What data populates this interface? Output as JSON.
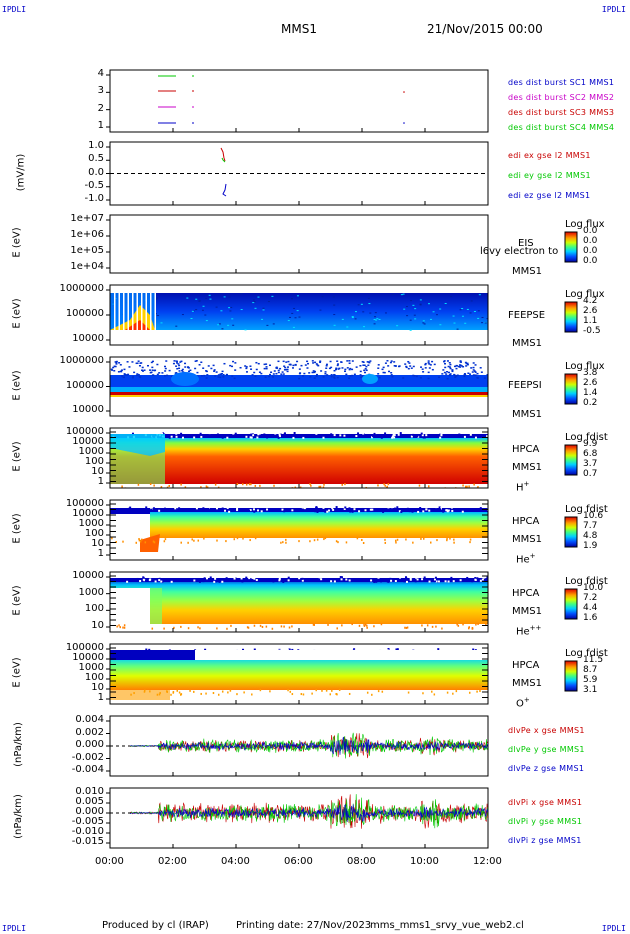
{
  "header": {
    "left_tag": "IPDLI",
    "right_tag": "IPDLI",
    "mission": "MMS1",
    "date": "21/Nov/2015 00:00"
  },
  "footer": {
    "left_tag": "IPDLI",
    "right_tag": "IPDLI",
    "produced_by": "Produced by cl (IRAP)",
    "printing_date": "Printing date: 27/Nov/2023",
    "file": "mms_mms1_srvy_vue_web2.cl"
  },
  "colors": {
    "burst1": "#00c800",
    "burst2": "#c80000",
    "burst3": "#c800c8",
    "burst4": "#0000c8",
    "legend_blue": "#0000c8",
    "legend_magenta": "#c800c8",
    "legend_red": "#c80000",
    "legend_green": "#00c800"
  },
  "chart_data": [
    {
      "type": "line",
      "panel": "burst",
      "yticks": [
        "4",
        "3",
        "2",
        "1"
      ],
      "ylim": [
        0.5,
        4.5
      ],
      "series": [
        {
          "name": "des dist burst SC1 MMS1",
          "color": "#0000c8"
        },
        {
          "name": "des dist burst SC2 MMS2",
          "color": "#c800c8"
        },
        {
          "name": "des dist burst SC3 MMS3",
          "color": "#c80000"
        },
        {
          "name": "des dist burst SC4 MMS4",
          "color": "#00c800"
        }
      ]
    },
    {
      "type": "line",
      "panel": "edi",
      "ylabel": "(mV/m)",
      "yticks": [
        "1.0",
        "0.5",
        "0.0",
        "-0.5",
        "-1.0"
      ],
      "ylim": [
        -1.4,
        1.2
      ],
      "series": [
        {
          "name": "edi ex gse l2 MMS1",
          "color": "#c80000"
        },
        {
          "name": "edi ey gse l2 MMS1",
          "color": "#00c800"
        },
        {
          "name": "edi ez gse l2 MMS1",
          "color": "#0000c8"
        }
      ]
    },
    {
      "type": "heatmap",
      "panel": "EIS",
      "ylabel": "E (eV)",
      "yticks": [
        "1e+07",
        "1e+06",
        "1e+05",
        "1e+04"
      ],
      "label": [
        "EIS",
        "MMS1"
      ],
      "overlay_text": "l6vy electron to",
      "colorbar": {
        "title": "Log flux",
        "ticks": [
          "0.0",
          "0.0",
          "0.0",
          "0.0"
        ]
      }
    },
    {
      "type": "heatmap",
      "panel": "FEEPSE",
      "ylabel": "E (eV)",
      "yticks": [
        "1000000",
        "100000",
        "10000"
      ],
      "label": [
        "FEEPSE",
        "MMS1"
      ],
      "colorbar": {
        "title": "Log flux",
        "ticks": [
          "4.2",
          "2.6",
          "1.1",
          "-0.5"
        ]
      }
    },
    {
      "type": "heatmap",
      "panel": "FEEPSI",
      "ylabel": "E (eV)",
      "yticks": [
        "1000000",
        "100000",
        "10000"
      ],
      "label": [
        "FEEPSI",
        "MMS1"
      ],
      "colorbar": {
        "title": "Log flux",
        "ticks": [
          "3.8",
          "2.6",
          "1.4",
          "0.2"
        ]
      }
    },
    {
      "type": "heatmap",
      "panel": "HPCA_H",
      "ylabel": "E (eV)",
      "yticks": [
        "100000",
        "10000",
        "1000",
        "100",
        "10",
        "1"
      ],
      "label": [
        "HPCA",
        "MMS1"
      ],
      "species": "H",
      "charge": "+",
      "colorbar": {
        "title": "Log fdist",
        "ticks": [
          "9.9",
          "6.8",
          "3.7",
          "0.7"
        ]
      }
    },
    {
      "type": "heatmap",
      "panel": "HPCA_He",
      "ylabel": "E (eV)",
      "yticks": [
        "100000",
        "10000",
        "1000",
        "100",
        "10",
        "1"
      ],
      "label": [
        "HPCA",
        "MMS1"
      ],
      "species": "He",
      "charge": "+",
      "colorbar": {
        "title": "Log fdist",
        "ticks": [
          "10.6",
          "7.7",
          "4.8",
          "1.9"
        ]
      }
    },
    {
      "type": "heatmap",
      "panel": "HPCA_He2",
      "ylabel": "E (eV)",
      "yticks": [
        "10000",
        "1000",
        "100",
        "10"
      ],
      "label": [
        "HPCA",
        "MMS1"
      ],
      "species": "He",
      "charge": "++",
      "colorbar": {
        "title": "Log fdist",
        "ticks": [
          "10.0",
          "7.2",
          "4.4",
          "1.6"
        ]
      }
    },
    {
      "type": "heatmap",
      "panel": "HPCA_O",
      "ylabel": "E (eV)",
      "yticks": [
        "100000",
        "10000",
        "1000",
        "100",
        "10",
        "1"
      ],
      "label": [
        "HPCA",
        "MMS1"
      ],
      "species": "O",
      "charge": "+",
      "colorbar": {
        "title": "Log fdist",
        "ticks": [
          "11.5",
          "8.7",
          "5.9",
          "3.1"
        ]
      }
    },
    {
      "type": "line",
      "panel": "dlvPe",
      "ylabel": "(nPa/km)",
      "yticks": [
        "0.004",
        "0.002",
        "0.000",
        "-0.002",
        "-0.004"
      ],
      "ylim": [
        -0.005,
        0.005
      ],
      "series": [
        {
          "name": "dlvPe x gse MMS1",
          "color": "#c80000"
        },
        {
          "name": "dlvPe y gse MMS1",
          "color": "#00c800"
        },
        {
          "name": "dlvPe z gse MMS1",
          "color": "#0000c8"
        }
      ]
    },
    {
      "type": "line",
      "panel": "dlvPi",
      "ylabel": "(nPa/km)",
      "yticks": [
        "0.010",
        "0.005",
        "0.000",
        "-0.005",
        "-0.010",
        "-0.015"
      ],
      "ylim": [
        -0.017,
        0.013
      ],
      "series": [
        {
          "name": "dlvPi x gse MMS1",
          "color": "#c80000"
        },
        {
          "name": "dlvPi y gse MMS1",
          "color": "#00c800"
        },
        {
          "name": "dlvPi z gse MMS1",
          "color": "#0000c8"
        }
      ]
    }
  ],
  "xaxis": {
    "ticks": [
      "00:00",
      "02:00",
      "04:00",
      "06:00",
      "08:00",
      "10:00",
      "12:00"
    ],
    "range_hours": [
      0,
      12
    ]
  }
}
